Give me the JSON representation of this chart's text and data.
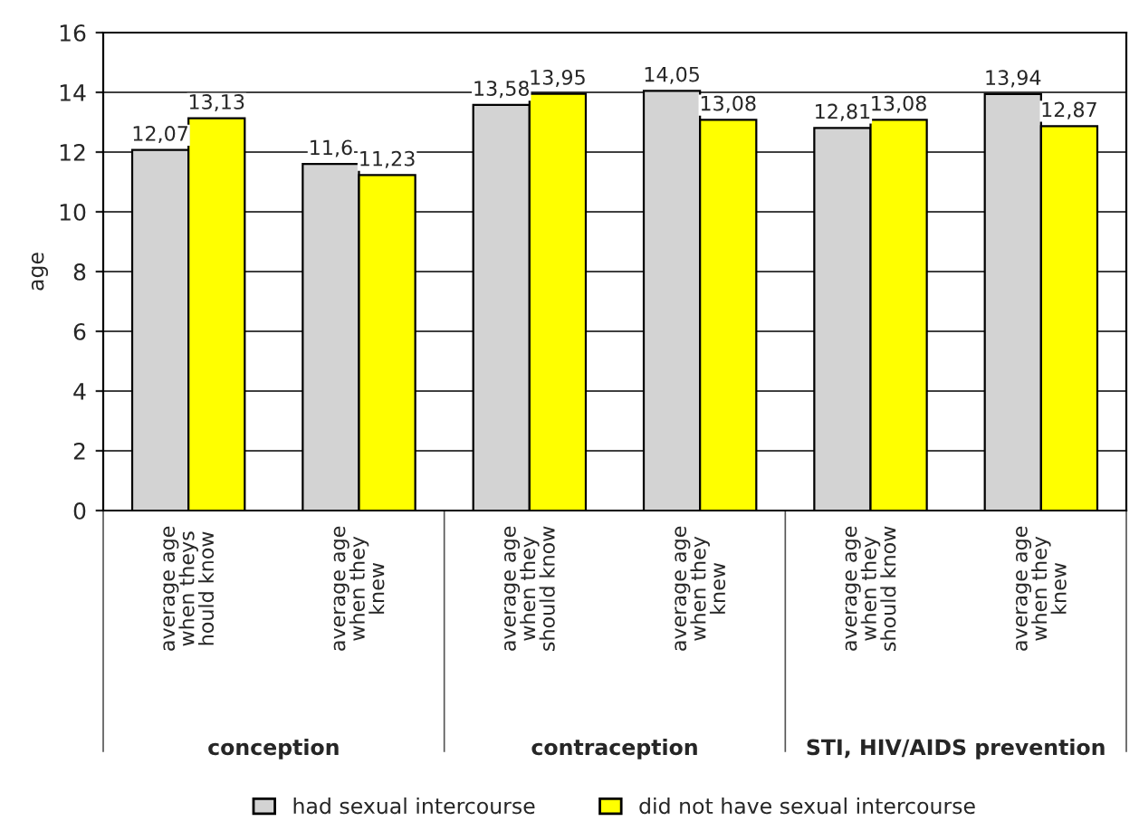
{
  "chart_data": {
    "type": "bar",
    "categories": [
      "average age\nwhen theys\nhould know",
      "average age\nwhen they\nknew",
      "average age\nwhen they\nshould know",
      "average age\nwhen they\nknew",
      "average age\nwhen they\nshould know",
      "average age\nwhen they\nknew"
    ],
    "series": [
      {
        "name": "had sexual intercourse",
        "color": "#d3d3d3",
        "values": [
          12.07,
          11.6,
          13.58,
          14.05,
          12.81,
          13.94
        ],
        "value_labels": [
          "12,07",
          "11,6",
          "13,58",
          "14,05",
          "12,81",
          "13,94"
        ]
      },
      {
        "name": "did not have sexual intercourse",
        "color": "#ffff00",
        "values": [
          13.13,
          11.23,
          13.95,
          13.08,
          13.08,
          12.87
        ],
        "value_labels": [
          "13,13",
          "11,23",
          "13,95",
          "13,08",
          "13,08",
          "12,87"
        ]
      }
    ],
    "ylabel": "age",
    "ylim": [
      0,
      16
    ],
    "yticks": [
      0,
      2,
      4,
      6,
      8,
      10,
      12,
      14,
      16
    ],
    "grid": "y",
    "legend": "bottom",
    "annotations": [
      "conception",
      "contraception",
      "STI, HIV/AIDS prevention"
    ]
  }
}
